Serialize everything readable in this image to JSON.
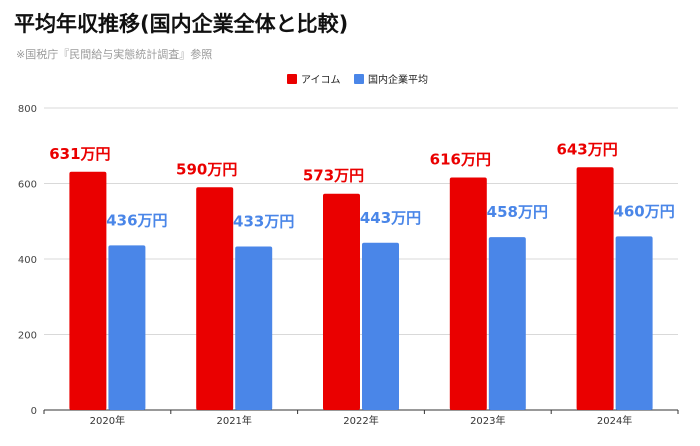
{
  "title": "平均年収推移(国内企業全体と比較)",
  "subtitle": "※国税庁『民間給与実態統計調査』参照",
  "colors": {
    "aicom": "#ea0000",
    "avg": "#4a86e8",
    "grid": "#d9d9d9",
    "axis": "#333333"
  },
  "chart_data": {
    "type": "bar",
    "categories": [
      "2020年",
      "2021年",
      "2022年",
      "2023年",
      "2024年"
    ],
    "series": [
      {
        "name": "アイコム",
        "values": [
          631,
          590,
          573,
          616,
          643
        ],
        "labels": [
          "631万円",
          "590万円",
          "573万円",
          "616万円",
          "643万円"
        ]
      },
      {
        "name": "国内企業平均",
        "values": [
          436,
          433,
          443,
          458,
          460
        ],
        "labels": [
          "436万円",
          "433万円",
          "443万円",
          "458万円",
          "460万円"
        ]
      }
    ],
    "yticks": [
      "0",
      "200",
      "400",
      "600",
      "800"
    ],
    "ylim": [
      0,
      800
    ],
    "grid": true,
    "legend": "top-center"
  }
}
